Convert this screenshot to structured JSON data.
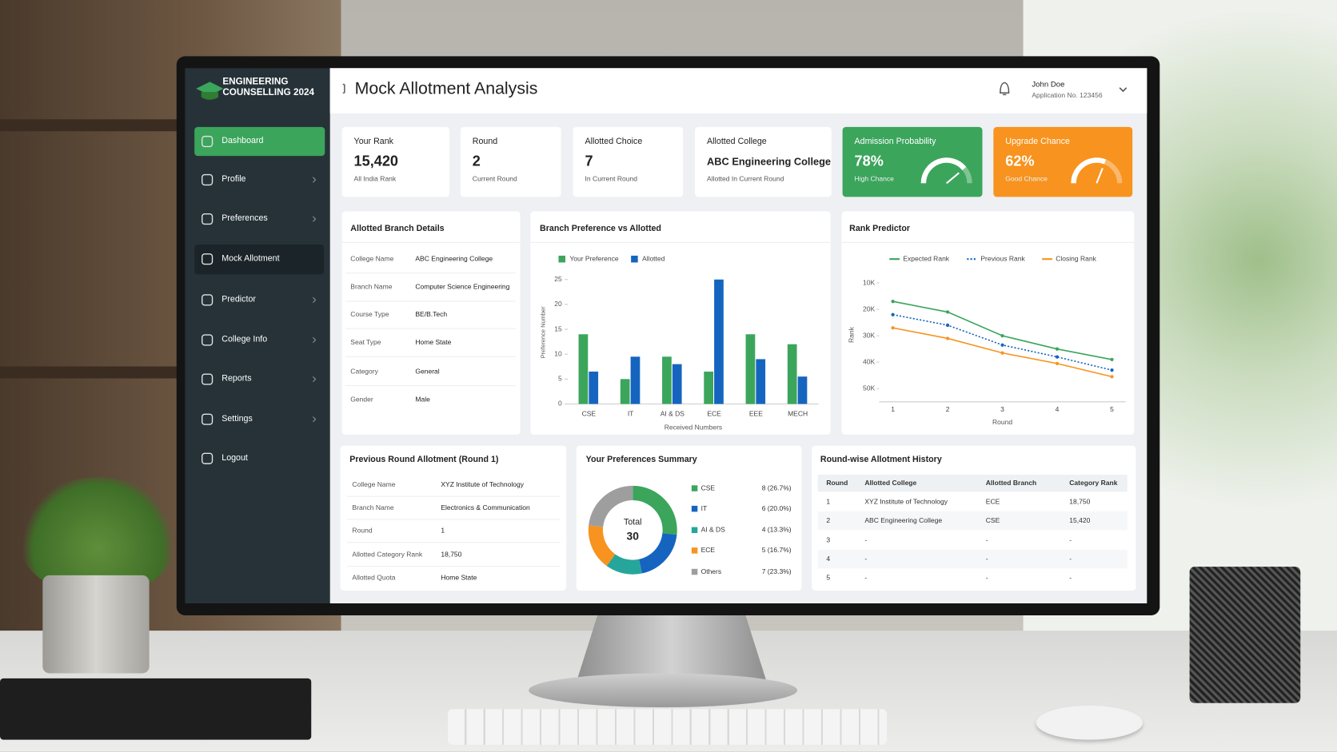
{
  "sidebar": {
    "brand": "ENGINEERING COUNSELLING 2024",
    "menu": [
      "Dashboard",
      "Profile",
      "Preferences",
      "Mock Allotment",
      "Predictor",
      "College Info",
      "Reports",
      "Settings",
      "Logout"
    ]
  },
  "header": {
    "title": "Mock Allotment Analysis",
    "user_name": "John Doe",
    "application_no": "Application No. 123456"
  },
  "stats": [
    {
      "label": "Your Rank",
      "value": "15,420",
      "note": "All India Rank"
    },
    {
      "label": "Round",
      "value": 2,
      "note": "Current Round"
    },
    {
      "label": "Allotted Choice",
      "value": 7,
      "note": "In Current Round"
    },
    {
      "label": "Allotted College",
      "value": "ABC Engineering College",
      "note": "Allotted In Current Round"
    },
    {
      "label": "Admission Probability",
      "value": 78,
      "value_label": "78%",
      "note": "High Chance",
      "color": "#3ba55c"
    },
    {
      "label": "Upgrade Chance",
      "value": 62,
      "value_label": "62%",
      "note": "Good Chance",
      "color": "#f7931e"
    }
  ],
  "allotted_branch_details": {
    "title": "Allotted Branch Details",
    "rows": [
      [
        "College Name",
        "ABC Engineering College"
      ],
      [
        "Branch Name",
        "Computer Science Engineering"
      ],
      [
        "Course Type",
        "BE/B.Tech"
      ],
      [
        "Seat Type",
        "Home State"
      ],
      [
        "Category",
        "General"
      ],
      [
        "Gender",
        "Male"
      ]
    ]
  },
  "chart_data": [
    {
      "type": "bar",
      "title": "Branch Preference vs Allotted",
      "categories": [
        "CSE",
        "IT",
        "AI & DS",
        "ECE",
        "EEE",
        "MECH"
      ],
      "series": [
        {
          "name": "Your Preference",
          "color": "#3ba55c",
          "values": [
            14,
            5,
            9.5,
            6.5,
            14,
            12
          ]
        },
        {
          "name": "Allotted",
          "color": "#1565c0",
          "values": [
            6.5,
            9.5,
            8,
            25,
            9,
            5.5
          ]
        }
      ],
      "ylim": [
        0,
        25
      ],
      "yticks": [
        0,
        5,
        10,
        15,
        20,
        25
      ],
      "ylabel": "Preference Number",
      "xlabel": "Received Numbers"
    },
    {
      "type": "line",
      "title": "Rank Predictor",
      "x": [
        1,
        2,
        3,
        4,
        5
      ],
      "series": [
        {
          "name": "Expected Rank",
          "color": "#3ba55c",
          "style": "solid",
          "values": [
            17000,
            21000,
            30000,
            35000,
            39000
          ]
        },
        {
          "name": "Previous Rank",
          "color": "#1565c0",
          "style": "dotted",
          "values": [
            22000,
            26000,
            33500,
            38000,
            43000
          ]
        },
        {
          "name": "Closing Rank",
          "color": "#f7931e",
          "style": "solid",
          "values": [
            27000,
            31000,
            36500,
            40500,
            45500
          ]
        }
      ],
      "xlim": [
        0.75,
        5.25
      ],
      "xticks": [
        1,
        2,
        3,
        4,
        5
      ],
      "ylim": [
        55000,
        8000
      ],
      "yticks": [
        {
          "value": 10000,
          "label": "10K"
        },
        {
          "value": 20000,
          "label": "20K"
        },
        {
          "value": 30000,
          "label": "30K"
        },
        {
          "value": 40000,
          "label": "40K"
        },
        {
          "value": 50000,
          "label": "50K"
        }
      ],
      "xlabel": "Round",
      "ylabel": "Rank"
    },
    {
      "type": "pie",
      "title": "Your Preferences Summary",
      "categories": [
        "CSE",
        "IT",
        "AI & DS",
        "ECE",
        "Others"
      ],
      "values": [
        8,
        6,
        4,
        5,
        7
      ],
      "value_labels": [
        "8 (26.7%)",
        "6 (20.0%)",
        "4 (13.3%)",
        "5 (16.7%)",
        "7 (23.3%)"
      ],
      "colors": [
        "#3ba55c",
        "#1565c0",
        "#26a69a",
        "#f7931e",
        "#9e9e9e"
      ],
      "center_label": "Total",
      "center_value": 30
    }
  ],
  "previous_round": {
    "title": "Previous Round Allotment (Round 1)",
    "rows": [
      [
        "College Name",
        "XYZ Institute of Technology"
      ],
      [
        "Branch Name",
        "Electronics & Communication"
      ],
      [
        "Round",
        "1"
      ],
      [
        "Allotted Category Rank",
        "18,750"
      ],
      [
        "Allotted Quota",
        "Home State"
      ]
    ]
  },
  "history": {
    "title": "Round-wise Allotment History",
    "columns": [
      "Round",
      "Allotted College",
      "Allotted Branch",
      "Category Rank"
    ],
    "rows": [
      [
        1,
        "XYZ Institute of Technology",
        "ECE",
        "18,750"
      ],
      [
        2,
        "ABC Engineering College",
        "CSE",
        "15,420"
      ],
      [
        3,
        "-",
        "-",
        "-"
      ],
      [
        4,
        "-",
        "-",
        "-"
      ],
      [
        5,
        "-",
        "-",
        "-"
      ]
    ]
  }
}
